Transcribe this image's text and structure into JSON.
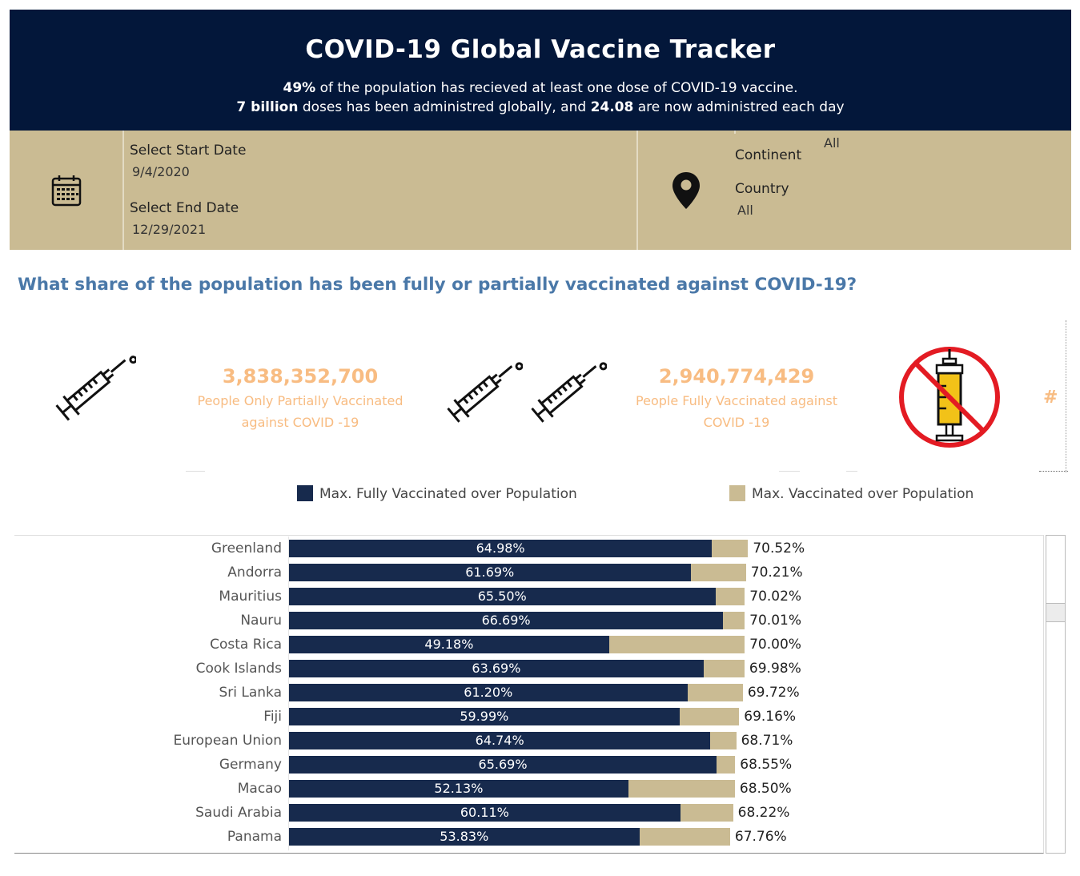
{
  "header": {
    "title": "COVID-19 Global Vaccine Tracker",
    "line1_bold": "49%",
    "line1_rest": " of the population has recieved at least one dose of COVID-19 vaccine.",
    "line2_bold1": "7 billion",
    "line2_mid": " doses has been administred globally, and ",
    "line2_bold2": "24.08",
    "line2_rest": " are now administred each day"
  },
  "filters": {
    "start_label": "Select Start Date",
    "start_value": "9/4/2020",
    "end_label": "Select End Date",
    "end_value": "12/29/2021",
    "continent_label": "Continent",
    "continent_value": "All",
    "country_label": "Country",
    "country_value": "All",
    "icons": [
      "calendar-icon",
      "location-pin-icon"
    ]
  },
  "section": {
    "title": "What share of the population has been fully or partially vaccinated against COVID-19?"
  },
  "kpis": {
    "partial_value": "3,838,352,700",
    "partial_label_1": "People Only Partially Vaccinated",
    "partial_label_2": "against COVID -19",
    "full_value": "2,940,774,429",
    "full_label_1": "People Fully Vaccinated against",
    "full_label_2": "COVID -19",
    "unvaccinated_value": "#",
    "icons": [
      "syringe-icon",
      "two-syringes-icon",
      "no-vaccine-icon"
    ],
    "accent_color": "#f8bc82"
  },
  "legend": {
    "fully": "Max. Fully Vaccinated over Population",
    "vaccinated": "Max. Vaccinated over Population",
    "fully_color": "#172a4d",
    "vaccinated_color": "#cabb93"
  },
  "chart_data": {
    "type": "bar",
    "orientation": "horizontal",
    "categories": [
      "Greenland",
      "Andorra",
      "Mauritius",
      "Nauru",
      "Costa Rica",
      "Cook Islands",
      "Sri Lanka",
      "Fiji",
      "European Union",
      "Germany",
      "Macao",
      "Saudi Arabia",
      "Panama"
    ],
    "series": [
      {
        "name": "Max. Fully Vaccinated over Population",
        "color": "#172a4d",
        "values": [
          64.98,
          61.69,
          65.5,
          66.69,
          49.18,
          63.69,
          61.2,
          59.99,
          64.74,
          65.69,
          52.13,
          60.11,
          53.83
        ],
        "labels": [
          "64.98%",
          "61.69%",
          "65.50%",
          "66.69%",
          "49.18%",
          "63.69%",
          "61.20%",
          "59.99%",
          "64.74%",
          "65.69%",
          "52.13%",
          "60.11%",
          "53.83%"
        ]
      },
      {
        "name": "Max. Vaccinated over Population",
        "color": "#cabb93",
        "values": [
          70.52,
          70.21,
          70.02,
          70.01,
          70.0,
          69.98,
          69.72,
          69.16,
          68.71,
          68.55,
          68.5,
          68.22,
          67.76
        ],
        "labels": [
          "70.52%",
          "70.21%",
          "70.02%",
          "70.01%",
          "70.00%",
          "69.98%",
          "69.72%",
          "69.16%",
          "68.71%",
          "68.55%",
          "68.50%",
          "68.22%",
          "67.76%"
        ]
      }
    ],
    "stacking": "overlay",
    "legend_position": "top",
    "grid": false
  }
}
